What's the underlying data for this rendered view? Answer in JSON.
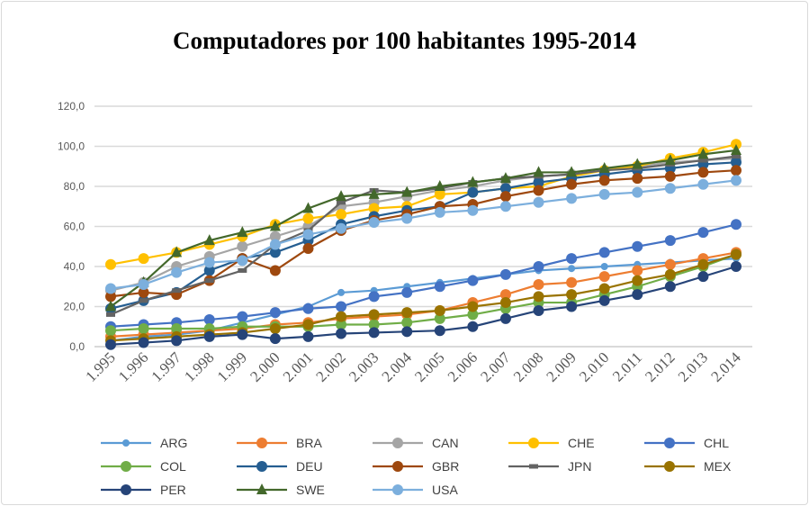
{
  "chart_data": {
    "type": "line",
    "title": "Computadores por 100 habitantes 1995-2014",
    "xlabel": "",
    "ylabel": "",
    "ylim": [
      0,
      120
    ],
    "yticks": [
      "0,0",
      "20,0",
      "40,0",
      "60,0",
      "80,0",
      "100,0",
      "120,0"
    ],
    "categories": [
      "1.995",
      "1.996",
      "1.997",
      "1.998",
      "1.999",
      "2.000",
      "2.001",
      "2.002",
      "2.003",
      "2.004",
      "2.005",
      "2.006",
      "2.007",
      "2.008",
      "2.009",
      "2.010",
      "2.011",
      "2.012",
      "2.013",
      "2.014"
    ],
    "grid": true,
    "legend": "bottom",
    "series": [
      {
        "name": "ARG",
        "color": "#5B9BD5",
        "marker": "circle-small",
        "values": [
          3,
          5,
          6,
          8,
          12,
          16,
          20,
          27,
          28,
          30,
          32,
          34,
          36,
          38,
          39,
          40,
          41,
          42,
          43,
          44
        ]
      },
      {
        "name": "BRA",
        "color": "#ED7D31",
        "marker": "circle",
        "values": [
          5,
          6,
          7,
          8,
          9,
          11,
          12,
          14,
          15,
          16,
          18,
          22,
          26,
          31,
          32,
          35,
          38,
          41,
          44,
          47
        ]
      },
      {
        "name": "CAN",
        "color": "#A5A5A5",
        "marker": "circle",
        "values": [
          28,
          32,
          40,
          45,
          50,
          55,
          60,
          70,
          72,
          75,
          78,
          80,
          83,
          85,
          86,
          88,
          90,
          92,
          93,
          94
        ]
      },
      {
        "name": "CHE",
        "color": "#FFC000",
        "marker": "circle",
        "values": [
          41,
          44,
          47,
          51,
          55,
          61,
          64,
          66,
          69,
          70,
          76,
          77,
          79,
          80,
          85,
          88,
          90,
          94,
          97,
          101
        ]
      },
      {
        "name": "CHL",
        "color": "#4472C4",
        "marker": "circle",
        "values": [
          10,
          11,
          12,
          13.5,
          15,
          17,
          19,
          20,
          25,
          27,
          30,
          33,
          36,
          40,
          44,
          47,
          50,
          53,
          57,
          61
        ]
      },
      {
        "name": "COL",
        "color": "#70AD47",
        "marker": "circle",
        "values": [
          8,
          9,
          9,
          9,
          10,
          10,
          10,
          11,
          11,
          12,
          14,
          16,
          19,
          22,
          22,
          26,
          30,
          35,
          40,
          46
        ]
      },
      {
        "name": "DEU",
        "color": "#255E91",
        "marker": "circle",
        "values": [
          19,
          23,
          27,
          38,
          44,
          47,
          53,
          61,
          65,
          68,
          70,
          77,
          79,
          82,
          84,
          86,
          88,
          89,
          91,
          92
        ]
      },
      {
        "name": "GBR",
        "color": "#9E480E",
        "marker": "circle",
        "values": [
          25,
          27,
          26,
          33,
          44,
          38,
          49,
          58,
          63,
          66,
          70,
          71,
          75,
          78,
          81,
          83,
          84,
          85,
          87,
          88
        ]
      },
      {
        "name": "JPN",
        "color": "#636363",
        "marker": "dash",
        "values": [
          16,
          23,
          28,
          33,
          38,
          51,
          58,
          72,
          78,
          77,
          79,
          82,
          84,
          85,
          86,
          88,
          89,
          91,
          93,
          95
        ]
      },
      {
        "name": "MEX",
        "color": "#997300",
        "marker": "circle",
        "values": [
          3,
          4,
          5,
          6,
          7,
          9,
          11,
          15,
          16,
          17,
          18,
          20,
          22,
          25,
          26,
          29,
          33,
          36,
          41,
          46
        ]
      },
      {
        "name": "PER",
        "color": "#264478",
        "marker": "circle",
        "values": [
          1,
          2,
          3,
          5,
          6,
          4,
          5,
          6.5,
          7,
          7.5,
          8,
          10,
          14,
          18,
          20,
          23,
          26,
          30,
          35,
          40
        ]
      },
      {
        "name": "SWE",
        "color": "#43682B",
        "marker": "triangle",
        "values": [
          20,
          32,
          47,
          53,
          57,
          60,
          69,
          75,
          76,
          77,
          80,
          82,
          84,
          87,
          87,
          89,
          91,
          93,
          96,
          98
        ]
      },
      {
        "name": "USA",
        "color": "#7CAFDD",
        "marker": "circle",
        "values": [
          29,
          31,
          37,
          42,
          43,
          51,
          56,
          59,
          62,
          64,
          67,
          68,
          70,
          72,
          74,
          76,
          77,
          79,
          81,
          83
        ]
      }
    ]
  }
}
